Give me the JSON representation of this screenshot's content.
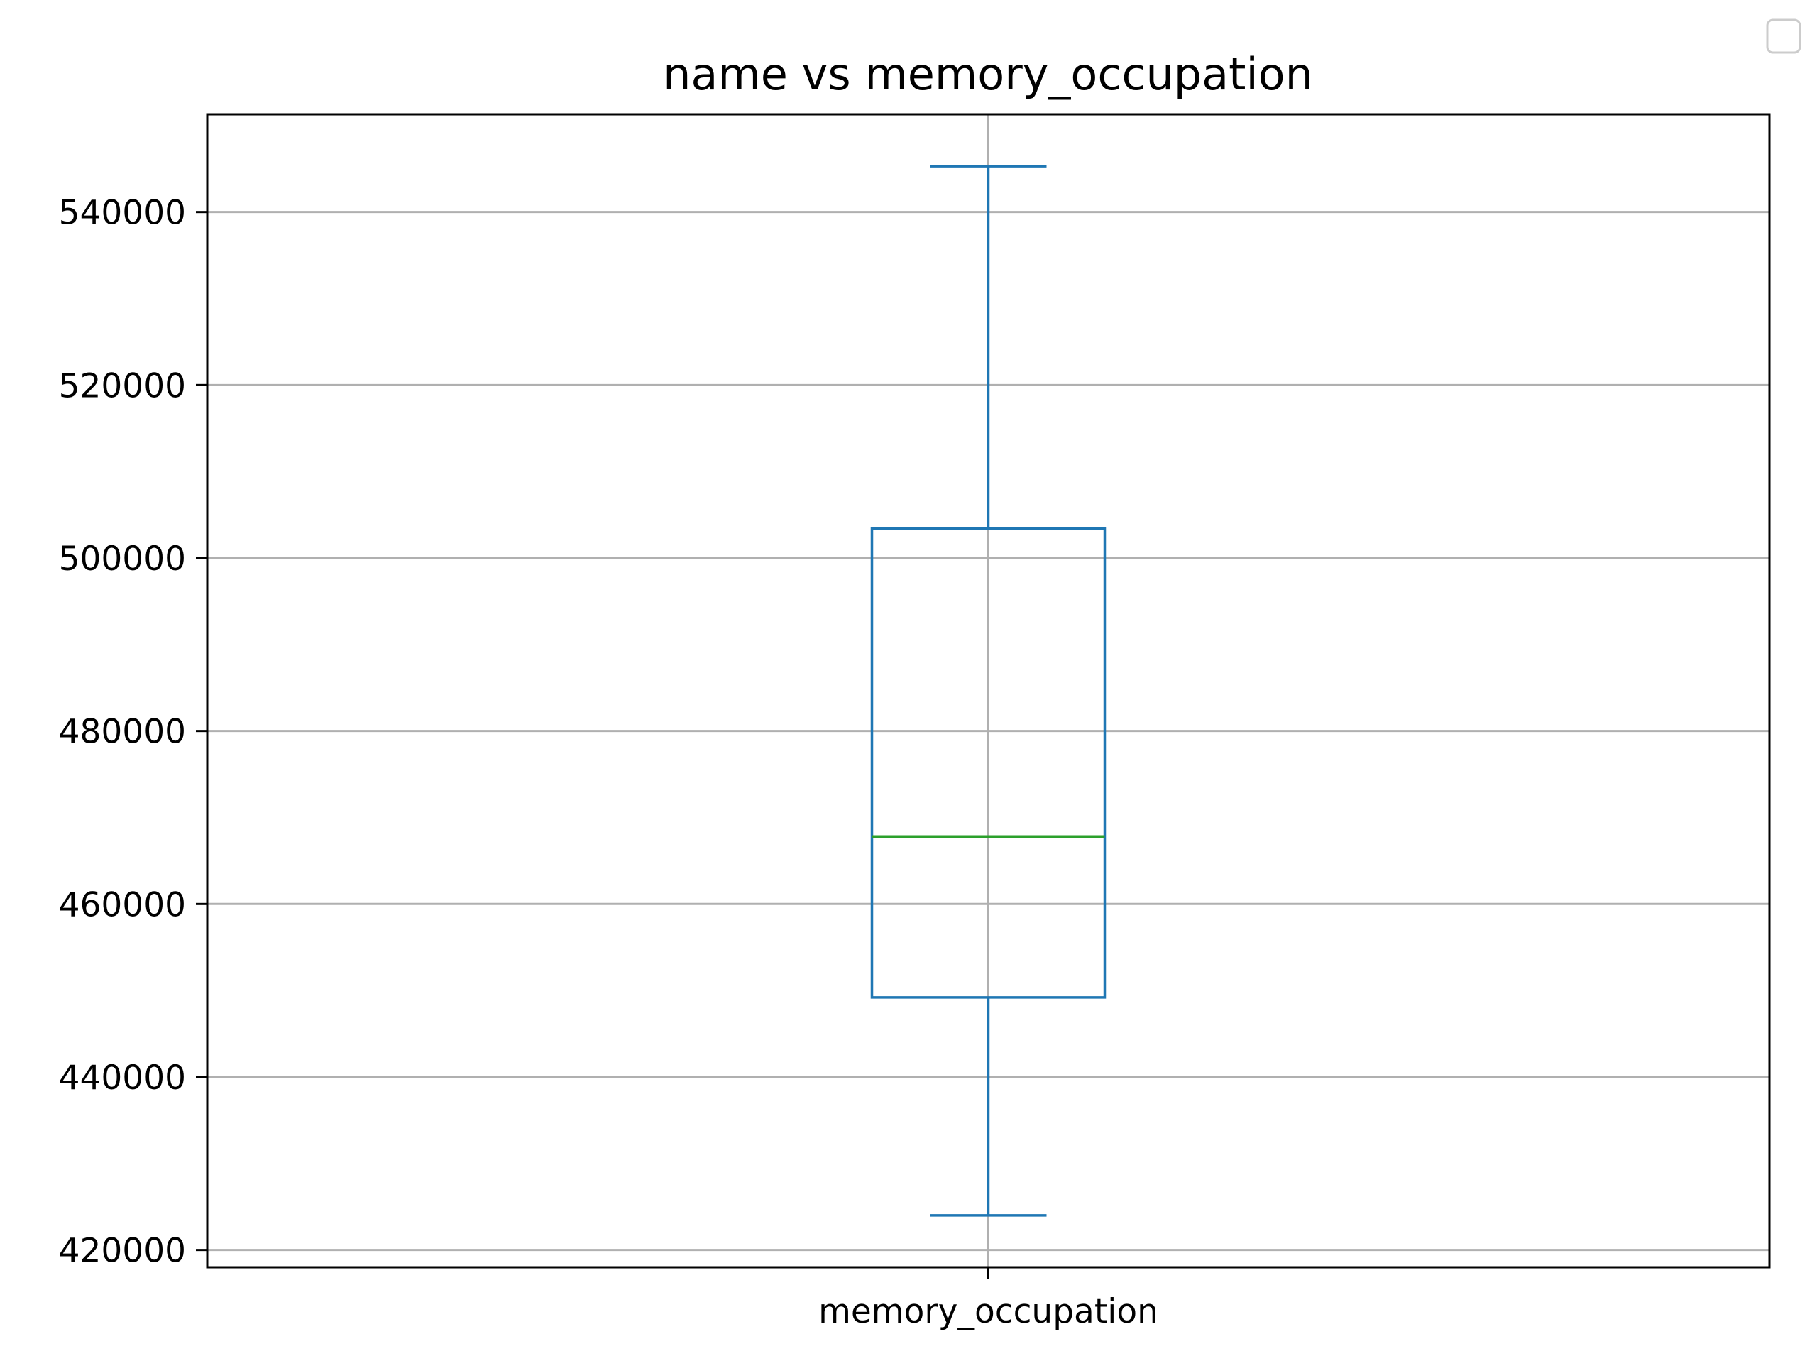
{
  "chart_data": {
    "type": "box",
    "title": "name vs memory_occupation",
    "xlabel": "",
    "ylabel": "",
    "categories": [
      "memory_occupation"
    ],
    "boxes": [
      {
        "category": "memory_occupation",
        "whisker_low": 424000,
        "q1": 449200,
        "median": 467800,
        "q3": 503400,
        "whisker_high": 545300
      }
    ],
    "ylim": [
      418000,
      551300
    ],
    "yticks": [
      420000,
      440000,
      460000,
      480000,
      500000,
      520000,
      540000
    ],
    "ytick_labels": [
      "420000",
      "440000",
      "460000",
      "480000",
      "500000",
      "520000",
      "540000"
    ],
    "grid": true,
    "legend": {
      "placement": "top-right",
      "entries": []
    },
    "colors": {
      "box": "#1f77b4",
      "median": "#2ca02c",
      "grid": "#b0b0b0",
      "axes": "#000000"
    }
  }
}
